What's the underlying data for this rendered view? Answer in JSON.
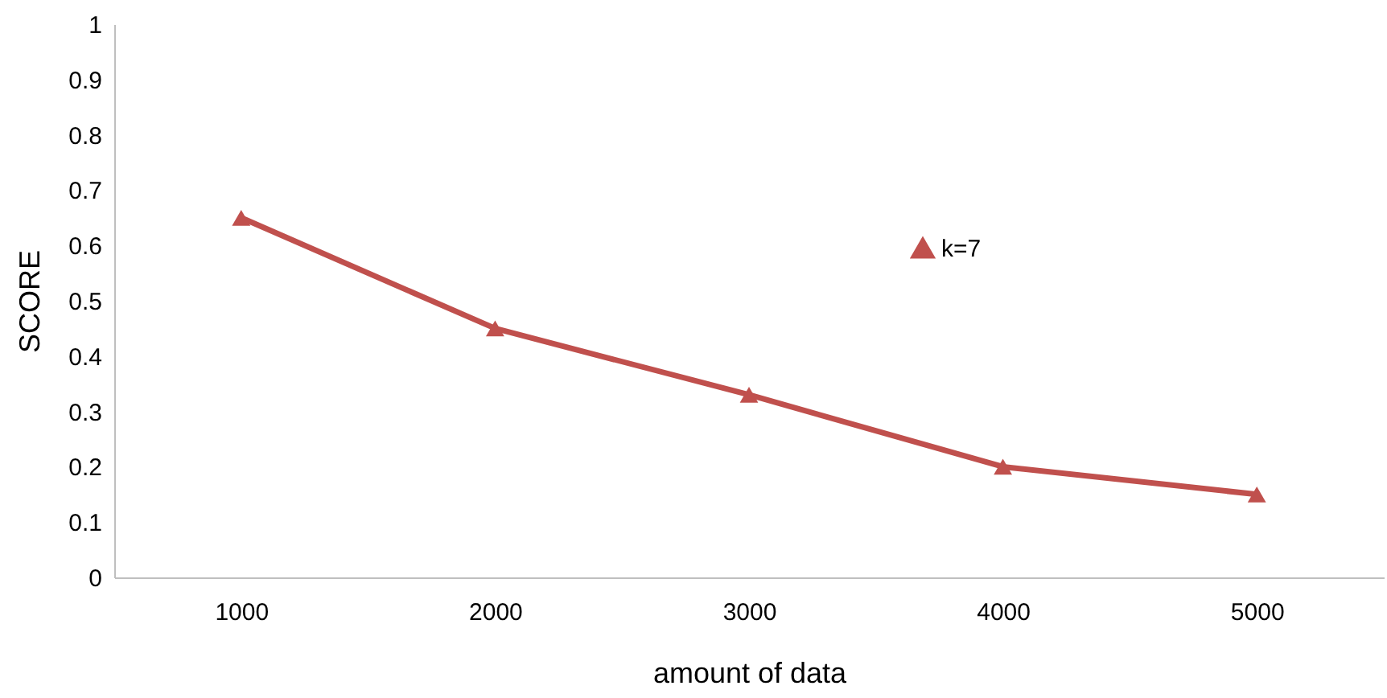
{
  "chart_data": {
    "type": "line",
    "xlabel": "amount of data",
    "ylabel": "SCORE",
    "categories": [
      "1000",
      "2000",
      "3000",
      "4000",
      "5000"
    ],
    "series": [
      {
        "name": "k=7",
        "color": "#c0504d",
        "values": [
          0.65,
          0.45,
          0.33,
          0.2,
          0.15
        ]
      }
    ],
    "ylim": [
      0,
      1
    ],
    "yticks": [
      0,
      0.1,
      0.2,
      0.3,
      0.4,
      0.5,
      0.6,
      0.7,
      0.8,
      0.9,
      1
    ],
    "grid": false,
    "legend": "right",
    "marker": "triangle",
    "line_style": "solid"
  }
}
